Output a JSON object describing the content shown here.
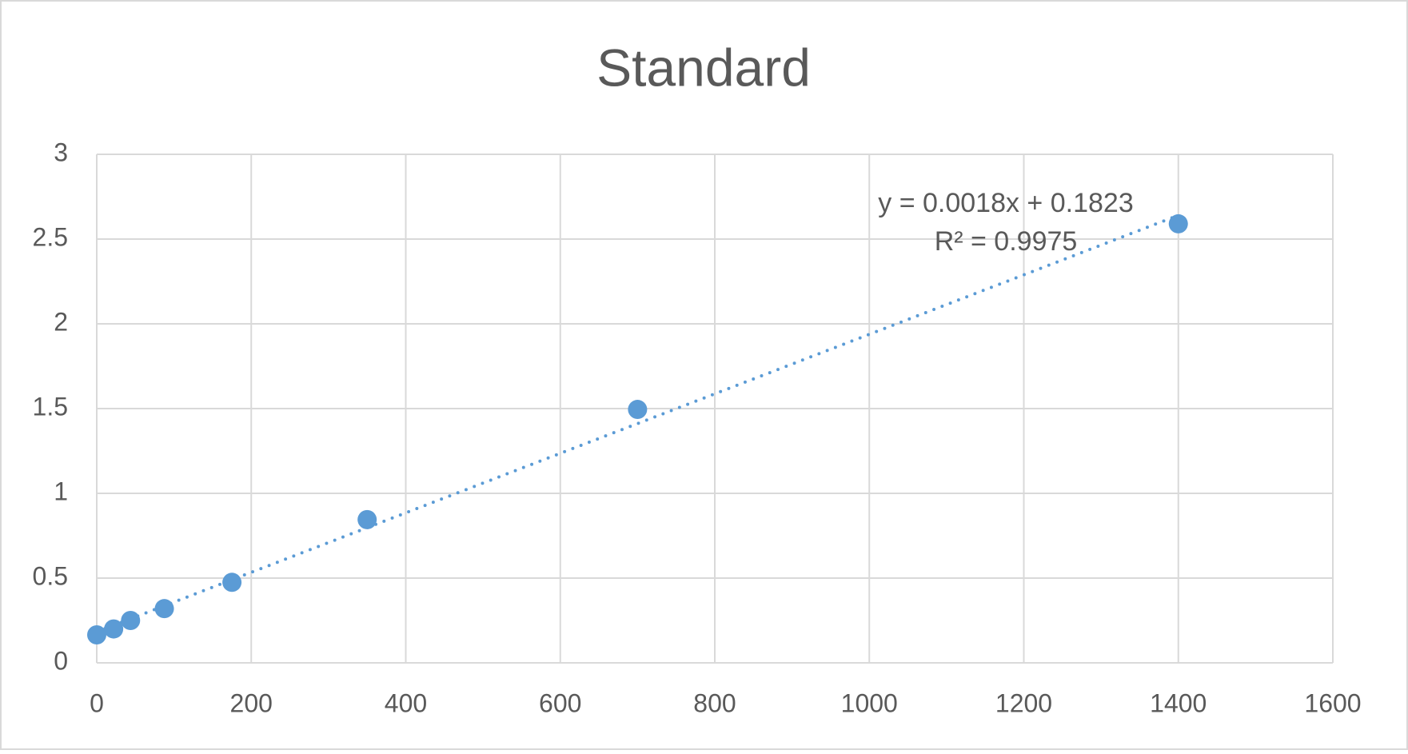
{
  "chart_data": {
    "type": "scatter",
    "title": "Standard",
    "annotations": [
      "y = 0.0018x + 0.1823",
      "R² = 0.9975"
    ],
    "x": [
      0,
      21.875,
      43.75,
      87.5,
      175,
      350,
      700,
      1400
    ],
    "series": [
      {
        "name": "Standard",
        "color": "#5b9bd5",
        "values": [
          0.165,
          0.2,
          0.25,
          0.32,
          0.475,
          0.845,
          1.495,
          2.59
        ]
      }
    ],
    "trendline": "linear",
    "xlim": [
      0,
      1600
    ],
    "xticks": [
      0,
      200,
      400,
      600,
      800,
      1000,
      1200,
      1400,
      1600
    ],
    "ylim": [
      0,
      3
    ],
    "yticks": [
      0,
      0.5,
      1,
      1.5,
      2,
      2.5,
      3
    ],
    "grid": true
  }
}
